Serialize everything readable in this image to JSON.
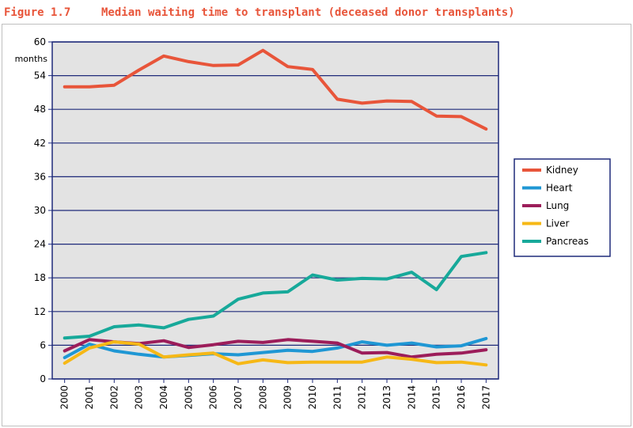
{
  "colors": {
    "title": "#e8553a",
    "plot_bg": "#e3e3e3",
    "frame": "#1e2a7a",
    "grid": "#1e2a7a"
  },
  "header": {
    "figure_label": "Figure 1.7",
    "title": "Median waiting time to transplant (deceased donor transplants)"
  },
  "chart_data": {
    "type": "line",
    "title": "Median waiting time to transplant (deceased donor transplants)",
    "xlabel": "",
    "ylabel": "months",
    "ylim": [
      0,
      60
    ],
    "yticks": [
      0,
      6,
      12,
      18,
      24,
      30,
      36,
      42,
      48,
      54,
      60
    ],
    "grid": true,
    "legend_position": "right",
    "categories": [
      "2000",
      "2001",
      "2002",
      "2003",
      "2004",
      "2005",
      "2006",
      "2007",
      "2008",
      "2009",
      "2010",
      "2011",
      "2012",
      "2013",
      "2014",
      "2015",
      "2016",
      "2017"
    ],
    "series": [
      {
        "name": "Kidney",
        "color": "#e8553a",
        "values": [
          52.0,
          52.0,
          52.3,
          55.0,
          57.5,
          56.5,
          55.8,
          55.9,
          58.5,
          55.6,
          55.1,
          49.8,
          49.1,
          49.5,
          49.4,
          46.8,
          46.7,
          44.5
        ]
      },
      {
        "name": "Heart",
        "color": "#1f97d4",
        "values": [
          3.8,
          6.2,
          5.0,
          4.4,
          3.9,
          4.2,
          4.5,
          4.3,
          4.7,
          5.1,
          4.9,
          5.5,
          6.6,
          6.0,
          6.4,
          5.7,
          5.9,
          7.2
        ]
      },
      {
        "name": "Lung",
        "color": "#9c1d5a",
        "values": [
          5.0,
          7.0,
          6.6,
          6.3,
          6.8,
          5.6,
          6.1,
          6.7,
          6.5,
          7.0,
          6.7,
          6.4,
          4.6,
          4.7,
          3.9,
          4.4,
          4.6,
          5.2
        ]
      },
      {
        "name": "Liver",
        "color": "#f6b816",
        "values": [
          2.8,
          5.5,
          6.6,
          6.2,
          3.9,
          4.3,
          4.6,
          2.7,
          3.4,
          2.9,
          3.0,
          3.0,
          3.0,
          3.9,
          3.5,
          2.9,
          3.0,
          2.5
        ]
      },
      {
        "name": "Pancreas",
        "color": "#17a99a",
        "values": [
          7.3,
          7.6,
          9.3,
          9.6,
          9.1,
          10.6,
          11.2,
          14.2,
          15.3,
          15.5,
          18.5,
          17.6,
          17.9,
          17.8,
          19.0,
          15.9,
          21.8,
          22.5
        ]
      }
    ]
  }
}
